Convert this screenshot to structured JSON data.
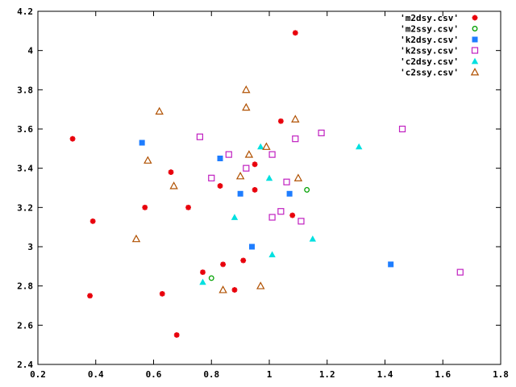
{
  "chart_data": {
    "type": "scatter",
    "xlim": [
      0.2,
      1.8
    ],
    "ylim": [
      2.4,
      4.2
    ],
    "x_ticks": [
      "0.2",
      "0.4",
      "0.6",
      "0.8",
      "1",
      "1.2",
      "1.4",
      "1.6",
      "1.8"
    ],
    "y_ticks": [
      "2.4",
      "2.6",
      "2.8",
      "3",
      "3.2",
      "3.4",
      "3.6",
      "3.8",
      "4",
      "4.2"
    ],
    "x_tick_values": [
      0.2,
      0.4,
      0.6,
      0.8,
      1.0,
      1.2,
      1.4,
      1.6,
      1.8
    ],
    "y_tick_values": [
      2.4,
      2.6,
      2.8,
      3.0,
      3.2,
      3.4,
      3.6,
      3.8,
      4.0,
      4.2
    ],
    "grid": false,
    "legend_position": "top-right",
    "series": [
      {
        "name": "'m2dsy.csv'",
        "marker": "star",
        "color": "#e8000b",
        "points": [
          [
            0.32,
            3.55
          ],
          [
            0.39,
            3.13
          ],
          [
            0.38,
            2.75
          ],
          [
            0.57,
            3.2
          ],
          [
            0.63,
            2.76
          ],
          [
            0.66,
            3.38
          ],
          [
            0.68,
            2.55
          ],
          [
            0.72,
            3.2
          ],
          [
            0.77,
            2.87
          ],
          [
            0.83,
            3.31
          ],
          [
            0.84,
            2.91
          ],
          [
            0.88,
            2.78
          ],
          [
            0.91,
            2.93
          ],
          [
            0.95,
            3.42
          ],
          [
            0.95,
            3.29
          ],
          [
            1.04,
            3.64
          ],
          [
            1.08,
            3.16
          ],
          [
            1.09,
            4.09
          ]
        ]
      },
      {
        "name": "'m2ssy.csv'",
        "marker": "circle-open",
        "color": "#00a000",
        "points": [
          [
            0.8,
            2.84
          ],
          [
            1.13,
            3.29
          ]
        ]
      },
      {
        "name": "'k2dsy.csv'",
        "marker": "square",
        "color": "#1e7dff",
        "points": [
          [
            0.56,
            3.53
          ],
          [
            0.83,
            3.45
          ],
          [
            0.9,
            3.27
          ],
          [
            0.94,
            3.0
          ],
          [
            1.07,
            3.27
          ],
          [
            1.42,
            2.91
          ]
        ]
      },
      {
        "name": "'k2ssy.csv'",
        "marker": "square-open",
        "color": "#c020c0",
        "points": [
          [
            0.76,
            3.56
          ],
          [
            0.8,
            3.35
          ],
          [
            0.86,
            3.47
          ],
          [
            0.92,
            3.4
          ],
          [
            1.01,
            3.47
          ],
          [
            1.01,
            3.15
          ],
          [
            1.04,
            3.18
          ],
          [
            1.06,
            3.33
          ],
          [
            1.09,
            3.55
          ],
          [
            1.11,
            3.13
          ],
          [
            1.18,
            3.58
          ],
          [
            1.46,
            3.6
          ],
          [
            1.66,
            2.87
          ]
        ]
      },
      {
        "name": "'c2dsy.csv'",
        "marker": "triangle",
        "color": "#00e0e0",
        "points": [
          [
            0.77,
            2.82
          ],
          [
            0.88,
            3.15
          ],
          [
            0.97,
            3.51
          ],
          [
            1.0,
            3.35
          ],
          [
            1.01,
            2.96
          ],
          [
            1.15,
            3.04
          ],
          [
            1.31,
            3.51
          ]
        ]
      },
      {
        "name": "'c2ssy.csv'",
        "marker": "triangle-open",
        "color": "#b05000",
        "points": [
          [
            0.54,
            3.04
          ],
          [
            0.58,
            3.44
          ],
          [
            0.62,
            3.69
          ],
          [
            0.67,
            3.31
          ],
          [
            0.84,
            2.78
          ],
          [
            0.9,
            3.36
          ],
          [
            0.92,
            3.8
          ],
          [
            0.92,
            3.71
          ],
          [
            0.93,
            3.47
          ],
          [
            0.97,
            2.8
          ],
          [
            0.99,
            3.51
          ],
          [
            1.09,
            3.65
          ],
          [
            1.1,
            3.35
          ]
        ]
      }
    ]
  }
}
